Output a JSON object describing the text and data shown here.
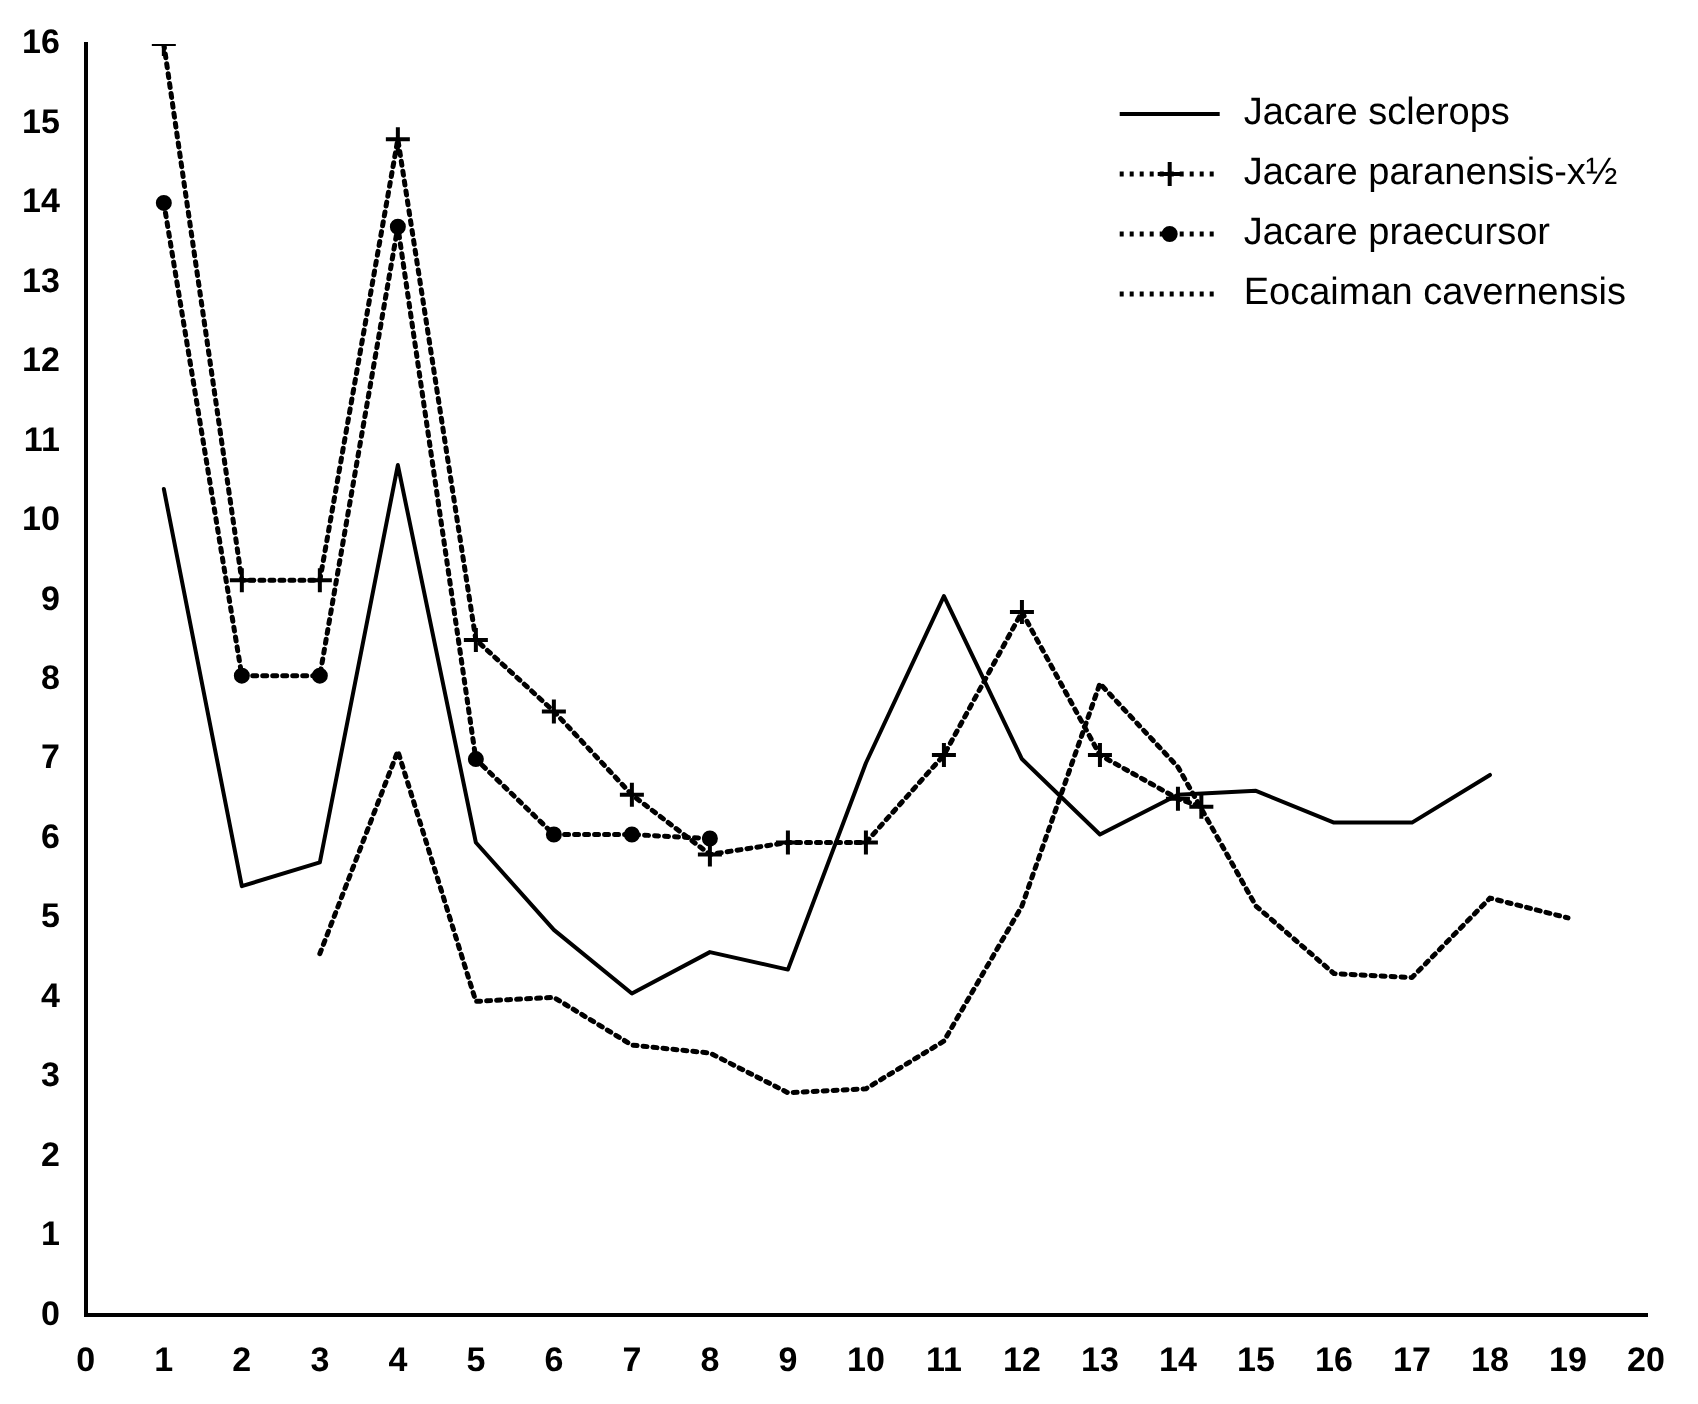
{
  "chart_data": {
    "type": "line",
    "xlim": [
      0,
      20
    ],
    "ylim": [
      0,
      16
    ],
    "xticks": [
      0,
      1,
      2,
      3,
      4,
      5,
      6,
      7,
      8,
      9,
      10,
      11,
      12,
      13,
      14,
      15,
      16,
      17,
      18,
      19,
      20
    ],
    "yticks": [
      0,
      1,
      2,
      3,
      4,
      5,
      6,
      7,
      8,
      9,
      10,
      11,
      12,
      13,
      14,
      15,
      16
    ],
    "legend": "top right",
    "series": [
      {
        "name": "Jacare sclerops",
        "color": "#000000",
        "line_style": "solid",
        "marker": "none",
        "x": [
          1,
          2,
          3,
          4,
          5,
          6,
          7,
          8,
          9,
          10,
          11,
          12,
          13,
          14,
          15,
          16,
          17,
          18
        ],
        "values": [
          10.4,
          5.4,
          5.7,
          10.7,
          5.95,
          4.85,
          4.05,
          4.57,
          4.35,
          6.95,
          9.05,
          7.0,
          6.05,
          6.55,
          6.6,
          6.2,
          6.2,
          6.8
        ]
      },
      {
        "name": "Jacare paranensis-x½",
        "color": "#000000",
        "line_style": "dotted",
        "marker": "cross",
        "x": [
          1,
          2,
          3,
          4,
          5,
          6,
          7,
          8,
          9,
          10,
          11,
          12,
          13,
          14,
          14.3
        ],
        "values": [
          16.0,
          9.25,
          9.25,
          14.8,
          8.5,
          7.6,
          6.55,
          5.8,
          5.95,
          5.95,
          7.05,
          8.85,
          7.05,
          6.5,
          6.4
        ]
      },
      {
        "name": "Jacare praecursor",
        "color": "#000000",
        "line_style": "dotted",
        "marker": "circle",
        "x": [
          1,
          2,
          3,
          4,
          5,
          6,
          7,
          8
        ],
        "values": [
          14.0,
          8.05,
          8.05,
          13.7,
          7.0,
          6.05,
          6.05,
          6.0
        ]
      },
      {
        "name": "Eocaiman cavernensis",
        "color": "#000000",
        "line_style": "dotted",
        "marker": "none",
        "x": [
          3,
          4,
          5,
          6,
          7,
          8,
          9,
          10,
          11,
          12,
          13,
          14,
          15,
          16,
          17,
          18,
          19
        ],
        "values": [
          4.55,
          7.1,
          3.95,
          4.0,
          3.4,
          3.3,
          2.8,
          2.85,
          3.45,
          5.15,
          7.95,
          6.9,
          5.15,
          4.3,
          4.25,
          5.25,
          5.0
        ]
      }
    ]
  }
}
